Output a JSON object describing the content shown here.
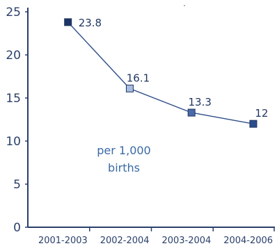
{
  "chart_data": {
    "type": "line",
    "categories": [
      "2001-2003",
      "2002-2004",
      "2003-2004",
      "2004-2006"
    ],
    "values": [
      23.8,
      16.1,
      13.3,
      12
    ],
    "value_labels": [
      "23.8",
      "16.1",
      "13.3",
      "12"
    ],
    "ylim": [
      0,
      25
    ],
    "yticks": [
      "0",
      "5",
      "10",
      "15",
      "20",
      "25"
    ],
    "annotation": [
      "per 1,000",
      "births"
    ],
    "grid": false,
    "marker_colors": [
      "#1d3566",
      "#a9bde0",
      "#4a6aaa",
      "#2b4c8c"
    ],
    "line_color": "#2f4f8a"
  }
}
